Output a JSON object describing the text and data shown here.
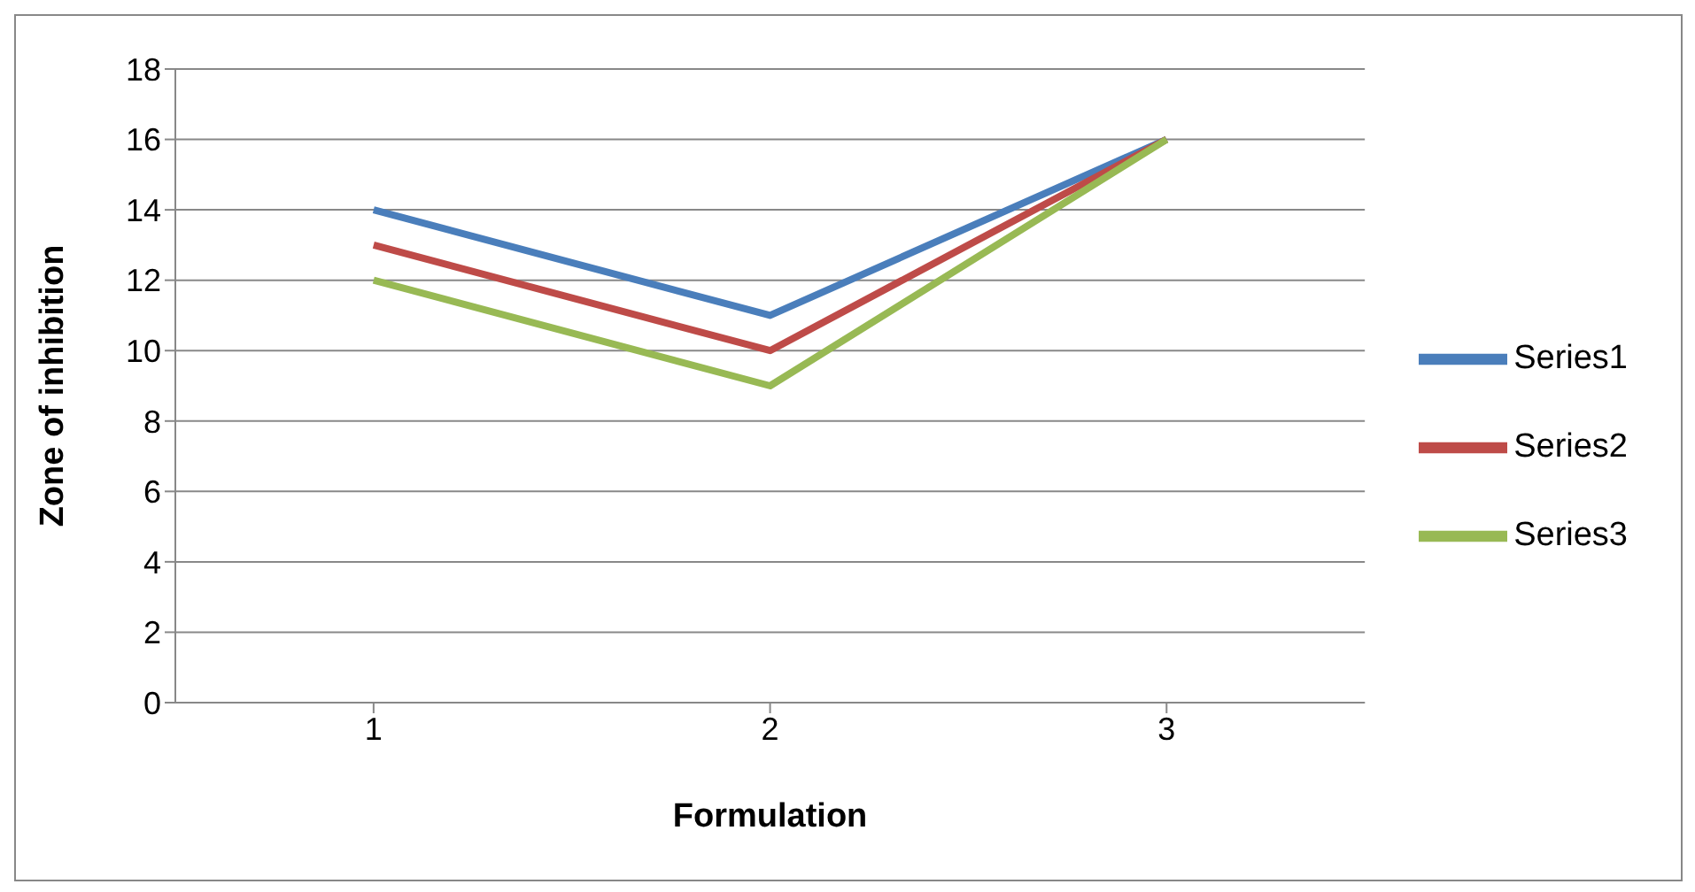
{
  "chart_data": {
    "type": "line",
    "xlabel": "Formulation",
    "ylabel": "Zone of inhibition",
    "categories": [
      "1",
      "2",
      "3"
    ],
    "series": [
      {
        "name": "Series1",
        "color": "#4a7ebb",
        "values": [
          14,
          11,
          16
        ]
      },
      {
        "name": "Series2",
        "color": "#be4b48",
        "values": [
          13,
          10,
          16
        ]
      },
      {
        "name": "Series3",
        "color": "#98b954",
        "values": [
          12,
          9,
          16
        ]
      }
    ],
    "ylim": [
      0,
      18
    ],
    "yticks": [
      0,
      2,
      4,
      6,
      8,
      10,
      12,
      14,
      16,
      18
    ],
    "grid": "y",
    "legend": "right",
    "marker": "none",
    "line_style": "solid"
  }
}
